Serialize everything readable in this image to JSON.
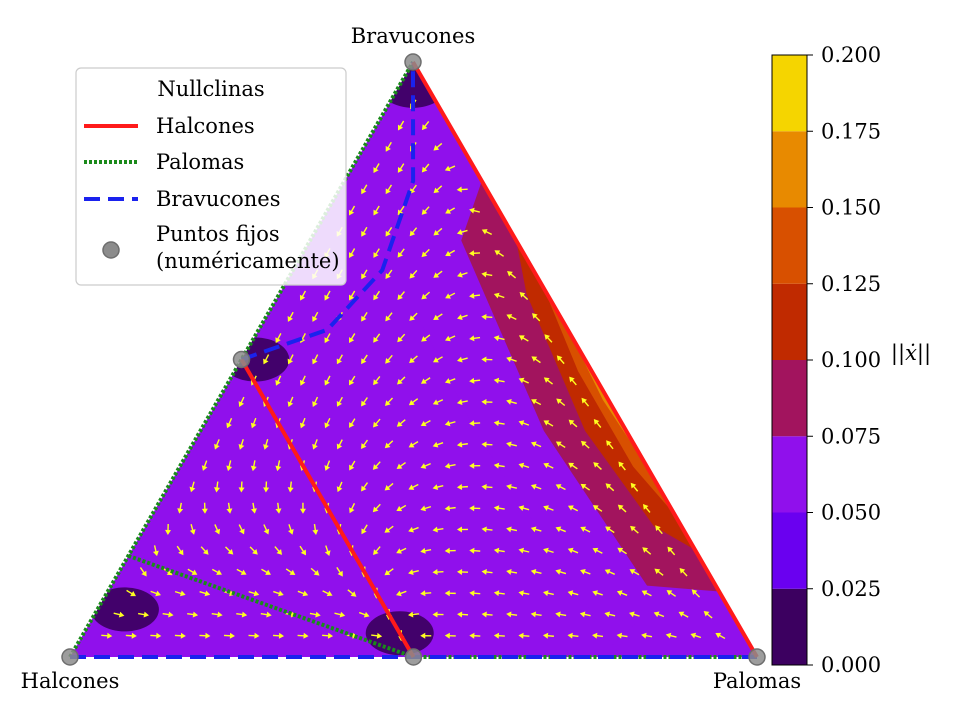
{
  "chart_data": {
    "type": "ternary-contour",
    "vertices": {
      "top": "Bravucones",
      "bottom_left": "Halcones",
      "bottom_right": "Palomas"
    },
    "legend": {
      "title": "Nullclinas",
      "placement": "upper-left",
      "entries": [
        {
          "label": "Halcones",
          "style": "solid",
          "color": "#ff1a1a"
        },
        {
          "label": "Palomas",
          "style": "dotted",
          "color": "#1a8a1a"
        },
        {
          "label": "Bravucones",
          "style": "dashed",
          "color": "#1a22ee"
        },
        {
          "label": "Puntos fijos",
          "label2": "(numéricamente)",
          "style": "marker",
          "color": "#8c8c8c"
        }
      ]
    },
    "colorbar": {
      "label": "||ẋ||",
      "range": [
        0.0,
        0.2
      ],
      "ticks": [
        "0.000",
        "0.025",
        "0.050",
        "0.075",
        "0.100",
        "0.125",
        "0.150",
        "0.175",
        "0.200"
      ],
      "levels": [
        {
          "from": 0.0,
          "to": 0.025,
          "color": "#3c0060"
        },
        {
          "from": 0.025,
          "to": 0.05,
          "color": "#6a00f0"
        },
        {
          "from": 0.05,
          "to": 0.075,
          "color": "#9010ec"
        },
        {
          "from": 0.075,
          "to": 0.1,
          "color": "#a2145e"
        },
        {
          "from": 0.1,
          "to": 0.125,
          "color": "#c02a00"
        },
        {
          "from": 0.125,
          "to": 0.15,
          "color": "#d85000"
        },
        {
          "from": 0.15,
          "to": 0.175,
          "color": "#e88a00"
        },
        {
          "from": 0.175,
          "to": 0.2,
          "color": "#f5d500"
        }
      ]
    },
    "fixed_points": [
      {
        "h": 1.0,
        "p": 0.0,
        "b": 0.0
      },
      {
        "h": 0.0,
        "p": 1.0,
        "b": 0.0
      },
      {
        "h": 0.0,
        "p": 0.0,
        "b": 1.0
      },
      {
        "h": 0.5,
        "p": 0.5,
        "b": 0.0
      },
      {
        "h": 0.5,
        "p": 0.0,
        "b": 0.5
      }
    ],
    "nullclines": {
      "Halcones": [
        [
          {
            "h": 0.5,
            "p": 0.0,
            "b": 0.5
          },
          {
            "h": 0.5,
            "p": 0.5,
            "b": 0.0
          }
        ],
        [
          {
            "h": 0.0,
            "p": 1.0,
            "b": 0.0
          },
          {
            "h": 0.0,
            "p": 0.0,
            "b": 1.0
          }
        ]
      ],
      "Palomas": [
        [
          {
            "h": 1.0,
            "p": 0.0,
            "b": 0.0
          },
          {
            "h": 0.0,
            "p": 0.0,
            "b": 1.0
          }
        ],
        [
          {
            "h": 0.83,
            "p": 0.0,
            "b": 0.17
          },
          {
            "h": 0.5,
            "p": 0.5,
            "b": 0.0
          }
        ],
        [
          {
            "h": 0.5,
            "p": 0.5,
            "b": 0.0
          },
          {
            "h": 0.0,
            "p": 1.0,
            "b": 0.0
          }
        ]
      ],
      "Bravucones": [
        [
          {
            "h": 1.0,
            "p": 0.0,
            "b": 0.0
          },
          {
            "h": 0.0,
            "p": 1.0,
            "b": 0.0
          }
        ],
        [
          {
            "h": 0.5,
            "p": 0.0,
            "b": 0.5
          },
          {
            "h": 0.35,
            "p": 0.1,
            "b": 0.55
          },
          {
            "h": 0.22,
            "p": 0.13,
            "b": 0.65
          },
          {
            "h": 0.1,
            "p": 0.1,
            "b": 0.8
          },
          {
            "h": 0.0,
            "p": 0.0,
            "b": 1.0
          }
        ]
      ]
    },
    "contours": [
      {
        "level": 0.05,
        "points": [
          {
            "h": 0.0,
            "p": 0.84,
            "b": 0.16
          },
          {
            "h": 0.2,
            "p": 0.78,
            "b": 0.02
          },
          {
            "h": 0.22,
            "p": 0.4,
            "b": 0.38
          },
          {
            "h": 0.2,
            "p": 0.12,
            "b": 0.68
          },
          {
            "h": 0.0,
            "p": 0.1,
            "b": 0.9
          }
        ]
      },
      {
        "level": 0.075,
        "points": [
          {
            "h": 0.0,
            "p": 0.89,
            "b": 0.11
          },
          {
            "h": 0.1,
            "p": 0.78,
            "b": 0.12
          },
          {
            "h": 0.12,
            "p": 0.5,
            "b": 0.38
          },
          {
            "h": 0.08,
            "p": 0.22,
            "b": 0.7
          },
          {
            "h": 0.0,
            "p": 0.2,
            "b": 0.8
          }
        ]
      },
      {
        "level": 0.1,
        "points": [
          {
            "h": 0.0,
            "p": 0.82,
            "b": 0.18
          },
          {
            "h": 0.04,
            "p": 0.74,
            "b": 0.22
          },
          {
            "h": 0.06,
            "p": 0.56,
            "b": 0.38
          },
          {
            "h": 0.03,
            "p": 0.36,
            "b": 0.61
          },
          {
            "h": 0.0,
            "p": 0.3,
            "b": 0.7
          }
        ]
      },
      {
        "level": 0.125,
        "points": [
          {
            "h": 0.0,
            "p": 0.76,
            "b": 0.24
          },
          {
            "h": 0.02,
            "p": 0.66,
            "b": 0.32
          },
          {
            "h": 0.02,
            "p": 0.5,
            "b": 0.48
          },
          {
            "h": 0.0,
            "p": 0.38,
            "b": 0.62
          }
        ]
      },
      {
        "level": 0.15,
        "points": [
          {
            "h": 0.0,
            "p": 0.68,
            "b": 0.32
          },
          {
            "h": 0.008,
            "p": 0.56,
            "b": 0.432
          },
          {
            "h": 0.0,
            "p": 0.46,
            "b": 0.54
          }
        ]
      }
    ],
    "dark_regions": [
      {
        "h": 0.88,
        "p": 0.04,
        "b": 0.08
      },
      {
        "h": 0.5,
        "p": 0.46,
        "b": 0.04
      },
      {
        "h": 0.48,
        "p": 0.02,
        "b": 0.5
      },
      {
        "h": 0.02,
        "p": 0.02,
        "b": 0.96
      }
    ],
    "vector_field": {
      "color": "#ffff20",
      "payoff_matrix": [
        [
          -1,
          2,
          1
        ],
        [
          0,
          1,
          0
        ],
        [
          -1,
          2,
          0
        ]
      ],
      "grid_steps": 28
    }
  }
}
